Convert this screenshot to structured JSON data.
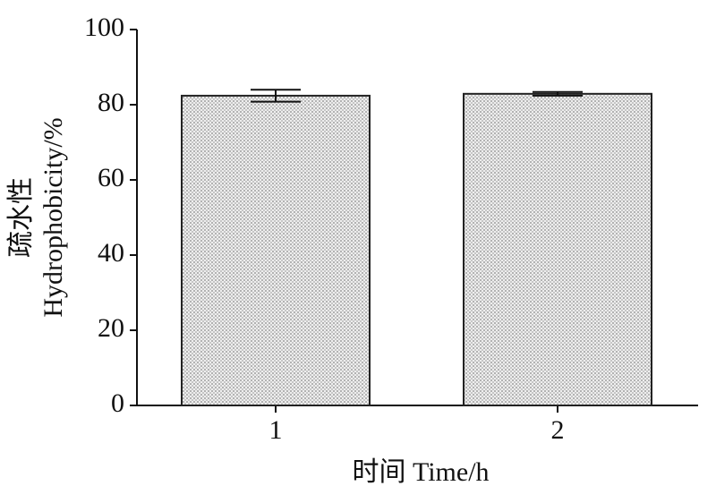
{
  "chart_data": {
    "type": "bar",
    "xlabel": "时间  Time/h",
    "ylabel": [
      "疏水性",
      "Hydrophobicity/%"
    ],
    "categories": [
      "1",
      "2"
    ],
    "values": [
      82.4,
      82.9
    ],
    "errors": [
      1.6,
      0.5
    ],
    "color": "#d4d4d4",
    "ylim": [
      0,
      100
    ],
    "yticks": [
      0,
      20,
      40,
      60,
      80,
      100
    ],
    "grid": false
  }
}
